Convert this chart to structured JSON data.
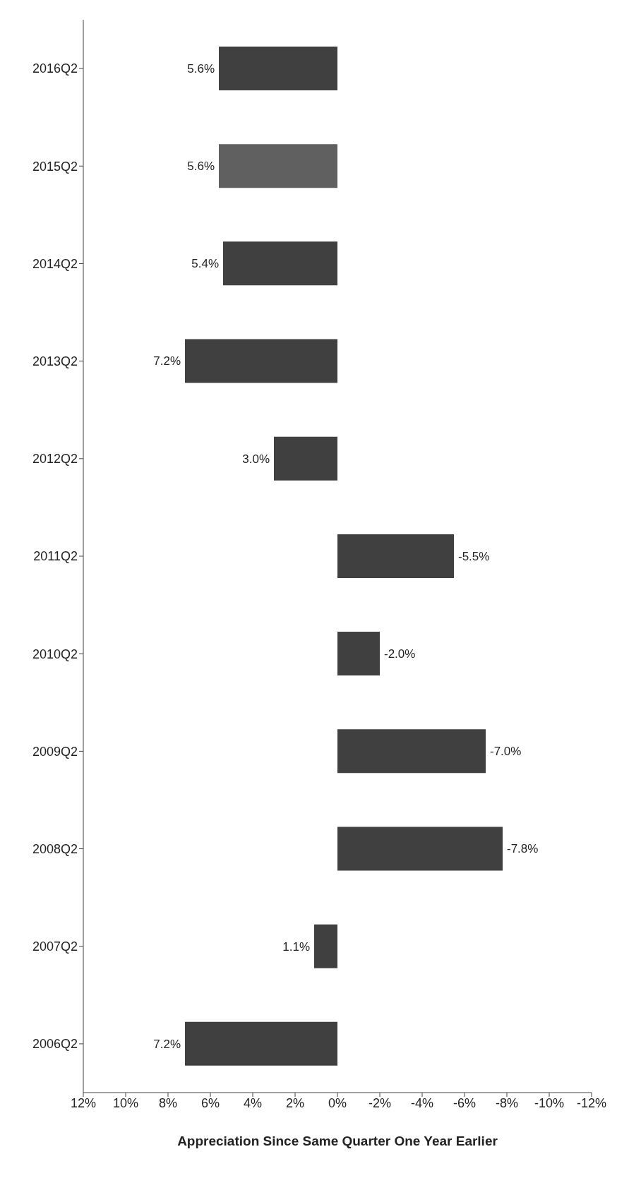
{
  "chart_data": {
    "type": "bar",
    "orientation": "horizontal",
    "xlabel": "Appreciation Since Same Quarter One Year Earlier",
    "categories": [
      "2016Q2",
      "2015Q2",
      "2014Q2",
      "2013Q2",
      "2012Q2",
      "2011Q2",
      "2010Q2",
      "2009Q2",
      "2008Q2",
      "2007Q2",
      "2006Q2"
    ],
    "values": [
      5.6,
      5.6,
      5.4,
      7.2,
      3.0,
      -5.5,
      -2.0,
      -7.0,
      -7.8,
      1.1,
      7.2
    ],
    "value_labels": [
      "5.6%",
      "5.6%",
      "5.4%",
      "7.2%",
      "3.0%",
      "-5.5%",
      "-2.0%",
      "-7.0%",
      "-7.8%",
      "1.1%",
      "7.2%"
    ],
    "colors": [
      "#404040",
      "#606060",
      "#404040",
      "#404040",
      "#404040",
      "#404040",
      "#404040",
      "#404040",
      "#404040",
      "#404040",
      "#404040"
    ],
    "xlim": [
      12,
      -12
    ],
    "xticks": [
      {
        "value": 12,
        "label": "12%"
      },
      {
        "value": 10,
        "label": "10%"
      },
      {
        "value": 8,
        "label": "8%"
      },
      {
        "value": 6,
        "label": "6%"
      },
      {
        "value": 4,
        "label": "4%"
      },
      {
        "value": 2,
        "label": "2%"
      },
      {
        "value": 0,
        "label": "0%"
      },
      {
        "value": -2,
        "label": "-2%"
      },
      {
        "value": -4,
        "label": "-4%"
      },
      {
        "value": -6,
        "label": "-6%"
      },
      {
        "value": -8,
        "label": "-8%"
      },
      {
        "value": -10,
        "label": "-10%"
      },
      {
        "value": -12,
        "label": "-12%"
      }
    ],
    "grid": false,
    "legend": false
  }
}
